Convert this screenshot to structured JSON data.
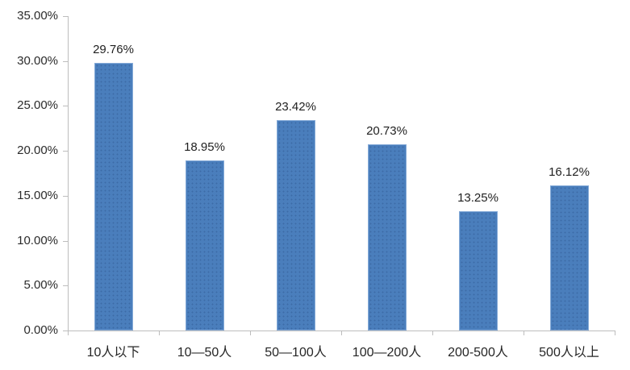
{
  "chart_data": {
    "type": "bar",
    "title": "",
    "xlabel": "",
    "ylabel": "",
    "categories": [
      "10人以下",
      "10—50人",
      "50—100人",
      "100—200人",
      "200-500人",
      "500人以上"
    ],
    "values": [
      29.76,
      18.95,
      23.42,
      20.73,
      13.25,
      16.12
    ],
    "value_labels": [
      "29.76%",
      "18.95%",
      "23.42%",
      "20.73%",
      "13.25%",
      "16.12%"
    ],
    "ylim": [
      0,
      35
    ],
    "ytick_step": 5,
    "ytick_labels": [
      "0.00%",
      "5.00%",
      "10.00%",
      "15.00%",
      "20.00%",
      "25.00%",
      "30.00%",
      "35.00%"
    ],
    "grid": false,
    "legend": null,
    "colors": {
      "bar_fill": "#4a7ebc",
      "bar_dot_texture": "#3c6ba6",
      "bar_border": "#86abd8",
      "axis": "#bdbdbd",
      "text": "#262626"
    }
  }
}
